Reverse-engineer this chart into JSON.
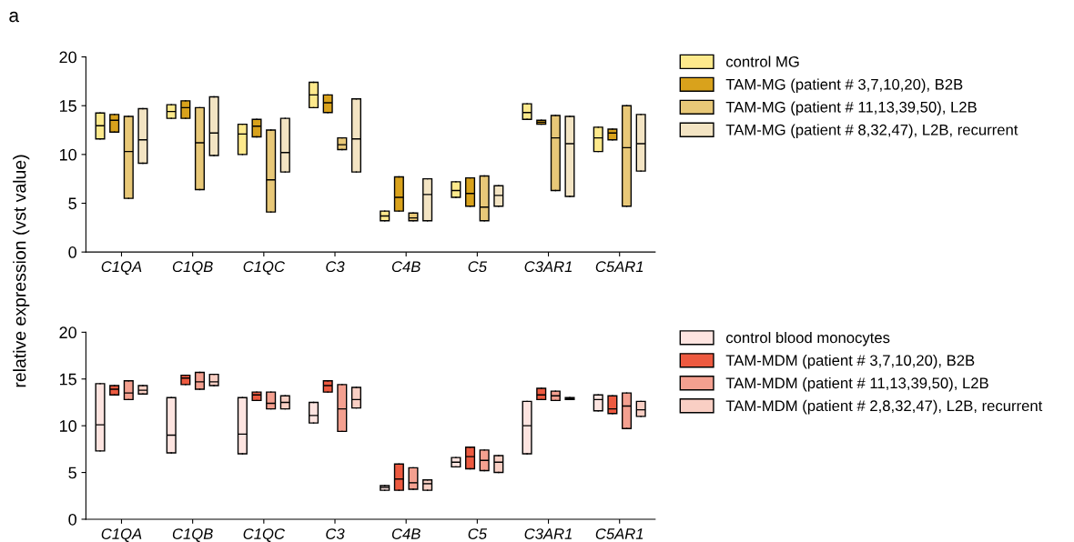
{
  "chart_data": [
    {
      "type": "box",
      "ylabel": "relative expression (vst value)",
      "annotations": [
        "a"
      ],
      "categories": [
        "C1QA",
        "C1QB",
        "C1QC",
        "C3",
        "C4B",
        "C5",
        "C3AR1",
        "C5AR1"
      ],
      "ylim": [
        0,
        20
      ],
      "yticks": [
        0,
        5,
        10,
        15,
        20
      ],
      "grid": false,
      "legend": "right",
      "series": [
        {
          "name": "control MG",
          "color": "#fde98c",
          "boxes": [
            {
              "low": 11.6,
              "q1": 11.6,
              "median": 12.95,
              "q3": 14.25,
              "high": 14.25
            },
            {
              "low": 13.7,
              "q1": 13.7,
              "median": 14.4,
              "q3": 15.1,
              "high": 15.1
            },
            {
              "low": 10.0,
              "q1": 10.0,
              "median": 12.1,
              "q3": 13.1,
              "high": 13.1
            },
            {
              "low": 14.8,
              "q1": 14.8,
              "median": 16.1,
              "q3": 17.4,
              "high": 17.4
            },
            {
              "low": 3.2,
              "q1": 3.2,
              "median": 3.7,
              "q3": 4.2,
              "high": 4.2
            },
            {
              "low": 5.6,
              "q1": 5.6,
              "median": 6.3,
              "q3": 7.2,
              "high": 7.2
            },
            {
              "low": 13.6,
              "q1": 13.6,
              "median": 14.3,
              "q3": 15.2,
              "high": 15.2
            },
            {
              "low": 10.3,
              "q1": 10.3,
              "median": 11.7,
              "q3": 12.8,
              "high": 12.8
            }
          ]
        },
        {
          "name": "TAM-MG (patient # 3,7,10,20), B2B",
          "color": "#d9a21c",
          "boxes": [
            {
              "low": 12.3,
              "q1": 12.3,
              "median": 13.5,
              "q3": 14.1,
              "high": 14.1
            },
            {
              "low": 13.7,
              "q1": 13.7,
              "median": 14.8,
              "q3": 15.5,
              "high": 15.5
            },
            {
              "low": 11.8,
              "q1": 11.8,
              "median": 12.9,
              "q3": 13.6,
              "high": 13.6
            },
            {
              "low": 14.3,
              "q1": 14.3,
              "median": 15.3,
              "q3": 16.1,
              "high": 16.1
            },
            {
              "low": 4.2,
              "q1": 4.2,
              "median": 5.6,
              "q3": 7.7,
              "high": 7.7
            },
            {
              "low": 4.7,
              "q1": 4.7,
              "median": 6.0,
              "q3": 7.6,
              "high": 7.6
            },
            {
              "low": 13.1,
              "q1": 13.1,
              "median": 13.3,
              "q3": 13.5,
              "high": 13.5
            },
            {
              "low": 11.5,
              "q1": 11.5,
              "median": 12.2,
              "q3": 12.6,
              "high": 12.6
            }
          ]
        },
        {
          "name": "TAM-MG (patient # 11,13,39,50), L2B",
          "color": "#e8c878",
          "boxes": [
            {
              "low": 5.5,
              "q1": 5.5,
              "median": 10.3,
              "q3": 13.9,
              "high": 13.9
            },
            {
              "low": 6.4,
              "q1": 6.4,
              "median": 11.2,
              "q3": 14.8,
              "high": 14.8
            },
            {
              "low": 4.1,
              "q1": 4.1,
              "median": 7.4,
              "q3": 12.5,
              "high": 12.5
            },
            {
              "low": 10.5,
              "q1": 10.5,
              "median": 11.0,
              "q3": 11.7,
              "high": 11.7
            },
            {
              "low": 3.2,
              "q1": 3.2,
              "median": 3.5,
              "q3": 4.0,
              "high": 4.0
            },
            {
              "low": 3.2,
              "q1": 3.2,
              "median": 4.6,
              "q3": 7.8,
              "high": 7.8
            },
            {
              "low": 6.3,
              "q1": 6.3,
              "median": 11.7,
              "q3": 14.0,
              "high": 14.0
            },
            {
              "low": 4.7,
              "q1": 4.7,
              "median": 10.7,
              "q3": 15.0,
              "high": 15.0
            }
          ]
        },
        {
          "name": "TAM-MG (patient # 8,32,47), L2B, recurrent",
          "color": "#f3e4c3",
          "boxes": [
            {
              "low": 9.1,
              "q1": 9.1,
              "median": 11.5,
              "q3": 14.7,
              "high": 14.7
            },
            {
              "low": 9.9,
              "q1": 9.9,
              "median": 12.2,
              "q3": 15.9,
              "high": 15.9
            },
            {
              "low": 8.2,
              "q1": 8.2,
              "median": 10.2,
              "q3": 13.7,
              "high": 13.7
            },
            {
              "low": 8.2,
              "q1": 8.2,
              "median": 11.6,
              "q3": 15.7,
              "high": 15.7
            },
            {
              "low": 3.2,
              "q1": 3.2,
              "median": 5.9,
              "q3": 7.5,
              "high": 7.5
            },
            {
              "low": 4.7,
              "q1": 4.7,
              "median": 5.8,
              "q3": 6.8,
              "high": 6.8
            },
            {
              "low": 5.7,
              "q1": 5.7,
              "median": 11.1,
              "q3": 13.9,
              "high": 13.9
            },
            {
              "low": 8.3,
              "q1": 8.3,
              "median": 11.1,
              "q3": 14.1,
              "high": 14.1
            }
          ]
        }
      ]
    },
    {
      "type": "box",
      "categories": [
        "C1QA",
        "C1QB",
        "C1QC",
        "C3",
        "C4B",
        "C5",
        "C3AR1",
        "C5AR1"
      ],
      "ylim": [
        0,
        20
      ],
      "yticks": [
        0,
        5,
        10,
        15,
        20
      ],
      "grid": false,
      "legend": "right",
      "series": [
        {
          "name": "control blood monocytes",
          "color": "#fde4e0",
          "boxes": [
            {
              "low": 7.3,
              "q1": 7.3,
              "median": 10.1,
              "q3": 14.5,
              "high": 14.5
            },
            {
              "low": 7.1,
              "q1": 7.1,
              "median": 9.0,
              "q3": 13.0,
              "high": 13.0
            },
            {
              "low": 7.0,
              "q1": 7.0,
              "median": 9.1,
              "q3": 13.0,
              "high": 13.0
            },
            {
              "low": 10.3,
              "q1": 10.3,
              "median": 11.1,
              "q3": 12.5,
              "high": 12.5
            },
            {
              "low": 3.1,
              "q1": 3.1,
              "median": 3.4,
              "q3": 3.6,
              "high": 3.6
            },
            {
              "low": 5.6,
              "q1": 5.6,
              "median": 6.1,
              "q3": 6.6,
              "high": 6.6
            },
            {
              "low": 7.0,
              "q1": 7.0,
              "median": 10.0,
              "q3": 12.6,
              "high": 12.6
            },
            {
              "low": 11.6,
              "q1": 11.6,
              "median": 12.8,
              "q3": 13.3,
              "high": 13.3
            }
          ]
        },
        {
          "name": "TAM-MDM (patient # 3,7,10,20), B2B",
          "color": "#ed5a40",
          "boxes": [
            {
              "low": 13.3,
              "q1": 13.3,
              "median": 13.9,
              "q3": 14.3,
              "high": 14.3
            },
            {
              "low": 14.4,
              "q1": 14.4,
              "median": 15.1,
              "q3": 15.4,
              "high": 15.4
            },
            {
              "low": 12.7,
              "q1": 12.7,
              "median": 13.3,
              "q3": 13.6,
              "high": 13.6
            },
            {
              "low": 13.6,
              "q1": 13.6,
              "median": 14.3,
              "q3": 14.8,
              "high": 14.8
            },
            {
              "low": 3.1,
              "q1": 3.1,
              "median": 4.3,
              "q3": 5.9,
              "high": 5.9
            },
            {
              "low": 5.4,
              "q1": 5.4,
              "median": 6.7,
              "q3": 7.7,
              "high": 7.7
            },
            {
              "low": 12.8,
              "q1": 12.8,
              "median": 13.3,
              "q3": 14.0,
              "high": 14.0
            },
            {
              "low": 11.3,
              "q1": 11.3,
              "median": 11.8,
              "q3": 13.2,
              "high": 13.2
            }
          ]
        },
        {
          "name": "TAM-MDM (patient # 11,13,39,50), L2B",
          "color": "#f4a090",
          "boxes": [
            {
              "low": 12.8,
              "q1": 12.8,
              "median": 13.5,
              "q3": 14.8,
              "high": 14.8
            },
            {
              "low": 13.9,
              "q1": 13.9,
              "median": 14.7,
              "q3": 15.7,
              "high": 15.7
            },
            {
              "low": 11.8,
              "q1": 11.8,
              "median": 12.4,
              "q3": 13.6,
              "high": 13.6
            },
            {
              "low": 9.4,
              "q1": 9.4,
              "median": 11.8,
              "q3": 14.4,
              "high": 14.4
            },
            {
              "low": 3.2,
              "q1": 3.2,
              "median": 3.9,
              "q3": 5.5,
              "high": 5.5
            },
            {
              "low": 5.2,
              "q1": 5.2,
              "median": 6.3,
              "q3": 7.4,
              "high": 7.4
            },
            {
              "low": 12.7,
              "q1": 12.7,
              "median": 13.2,
              "q3": 13.7,
              "high": 13.7
            },
            {
              "low": 9.7,
              "q1": 9.7,
              "median": 12.1,
              "q3": 13.5,
              "high": 13.5
            }
          ]
        },
        {
          "name": "TAM-MDM (patient # 2,8,32,47), L2B, recurrent",
          "color": "#f9cfc4",
          "boxes": [
            {
              "low": 13.4,
              "q1": 13.4,
              "median": 13.8,
              "q3": 14.3,
              "high": 14.3
            },
            {
              "low": 14.3,
              "q1": 14.3,
              "median": 14.7,
              "q3": 15.5,
              "high": 15.5
            },
            {
              "low": 11.8,
              "q1": 11.8,
              "median": 12.5,
              "q3": 13.2,
              "high": 13.2
            },
            {
              "low": 11.9,
              "q1": 11.9,
              "median": 12.8,
              "q3": 14.1,
              "high": 14.1
            },
            {
              "low": 3.1,
              "q1": 3.1,
              "median": 3.8,
              "q3": 4.2,
              "high": 4.2
            },
            {
              "low": 5.0,
              "q1": 5.0,
              "median": 6.1,
              "q3": 6.8,
              "high": 6.8
            },
            {
              "low": 12.8,
              "q1": 12.8,
              "median": 12.9,
              "q3": 13.0,
              "high": 13.0
            },
            {
              "low": 11.0,
              "q1": 11.0,
              "median": 11.7,
              "q3": 12.6,
              "high": 12.6
            }
          ]
        }
      ]
    }
  ]
}
